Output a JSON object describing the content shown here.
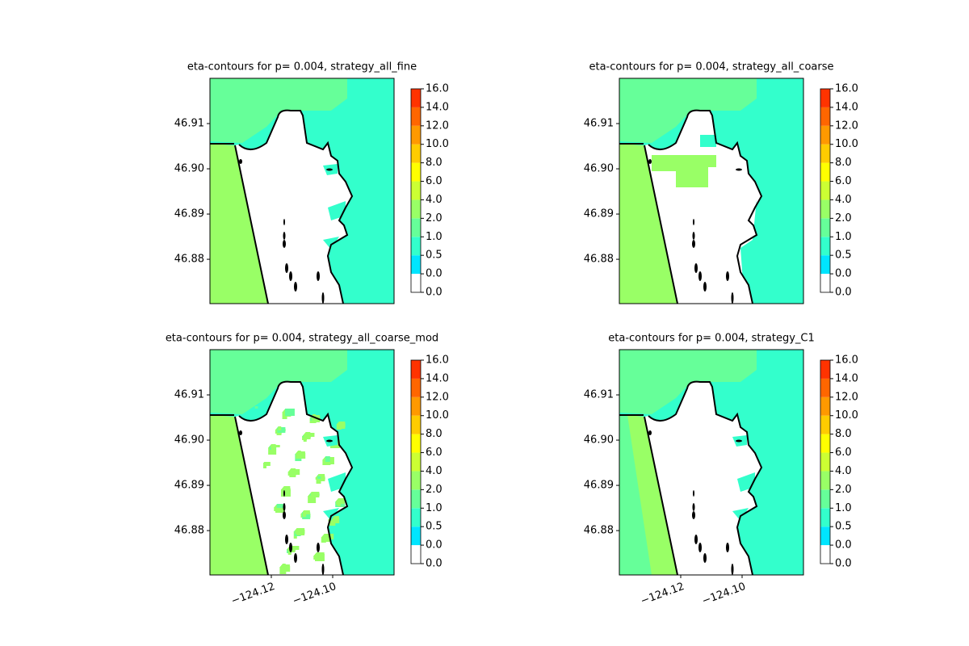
{
  "chart_data": [
    {
      "type": "contour",
      "title": "eta-contours for p= 0.004, strategy_all_fine",
      "xlim": [
        -124.14,
        -124.08
      ],
      "ylim": [
        46.8702,
        46.92
      ],
      "yticks": [
        46.88,
        46.89,
        {
          "value": 46.9,
          "label": "46.90"
        },
        46.91
      ],
      "levels": [
        {
          "value": 0,
          "label": "0.0"
        },
        {
          "value": 0,
          "label": "0.0"
        },
        0.5,
        {
          "value": 1,
          "label": "1.0"
        },
        {
          "value": 2,
          "label": "2.0"
        },
        {
          "value": 4,
          "label": "4.0"
        },
        {
          "value": 6,
          "label": "6.0"
        },
        {
          "value": 8,
          "label": "8.0"
        },
        {
          "value": 10,
          "label": "10.0"
        },
        {
          "value": 12,
          "label": "12.0"
        },
        {
          "value": 14,
          "label": "14.0"
        },
        {
          "value": 16,
          "label": "16.0"
        }
      ],
      "colors": [
        "#ffffff",
        "#00e5ff",
        "#33ffcc",
        "#66ff99",
        "#99ff66",
        "#ccff33",
        "#ffff00",
        "#ffcc00",
        "#ff9900",
        "#ff6600",
        "#ff3300"
      ]
    },
    {
      "type": "contour",
      "title": "eta-contours for p= 0.004, strategy_all_coarse",
      "xlim": [
        -124.14,
        -124.08
      ],
      "ylim": [
        46.8702,
        46.92
      ],
      "yticks": [
        46.88,
        46.89,
        {
          "value": 46.9,
          "label": "46.90"
        },
        46.91
      ],
      "levels": [
        {
          "value": 0,
          "label": "0.0"
        },
        {
          "value": 0,
          "label": "0.0"
        },
        0.5,
        {
          "value": 1,
          "label": "1.0"
        },
        {
          "value": 2,
          "label": "2.0"
        },
        {
          "value": 4,
          "label": "4.0"
        },
        {
          "value": 6,
          "label": "6.0"
        },
        {
          "value": 8,
          "label": "8.0"
        },
        {
          "value": 10,
          "label": "10.0"
        },
        {
          "value": 12,
          "label": "12.0"
        },
        {
          "value": 14,
          "label": "14.0"
        },
        {
          "value": 16,
          "label": "16.0"
        }
      ],
      "colors": [
        "#ffffff",
        "#00e5ff",
        "#33ffcc",
        "#66ff99",
        "#99ff66",
        "#ccff33",
        "#ffff00",
        "#ffcc00",
        "#ff9900",
        "#ff6600",
        "#ff3300"
      ]
    },
    {
      "type": "contour",
      "title": "eta-contours for p= 0.004, strategy_all_coarse_mod",
      "xlim": [
        -124.14,
        -124.08
      ],
      "ylim": [
        46.8702,
        46.92
      ],
      "xticks": [
        {
          "value": -124.12,
          "label": "−124.12"
        },
        {
          "value": -124.1,
          "label": "−124.10"
        }
      ],
      "yticks": [
        46.88,
        46.89,
        {
          "value": 46.9,
          "label": "46.90"
        },
        46.91
      ],
      "levels": [
        {
          "value": 0,
          "label": "0.0"
        },
        {
          "value": 0,
          "label": "0.0"
        },
        0.5,
        {
          "value": 1,
          "label": "1.0"
        },
        {
          "value": 2,
          "label": "2.0"
        },
        {
          "value": 4,
          "label": "4.0"
        },
        {
          "value": 6,
          "label": "6.0"
        },
        {
          "value": 8,
          "label": "8.0"
        },
        {
          "value": 10,
          "label": "10.0"
        },
        {
          "value": 12,
          "label": "12.0"
        },
        {
          "value": 14,
          "label": "14.0"
        },
        {
          "value": 16,
          "label": "16.0"
        }
      ],
      "colors": [
        "#ffffff",
        "#00e5ff",
        "#33ffcc",
        "#66ff99",
        "#99ff66",
        "#ccff33",
        "#ffff00",
        "#ffcc00",
        "#ff9900",
        "#ff6600",
        "#ff3300"
      ]
    },
    {
      "type": "contour",
      "title": "eta-contours for p= 0.004, strategy_C1",
      "xlim": [
        -124.14,
        -124.08
      ],
      "ylim": [
        46.8702,
        46.92
      ],
      "xticks": [
        {
          "value": -124.12,
          "label": "−124.12"
        },
        {
          "value": -124.1,
          "label": "−124.10"
        }
      ],
      "yticks": [
        46.88,
        46.89,
        {
          "value": 46.9,
          "label": "46.90"
        },
        46.91
      ],
      "levels": [
        {
          "value": 0,
          "label": "0.0"
        },
        {
          "value": 0,
          "label": "0.0"
        },
        0.5,
        {
          "value": 1,
          "label": "1.0"
        },
        {
          "value": 2,
          "label": "2.0"
        },
        {
          "value": 4,
          "label": "4.0"
        },
        {
          "value": 6,
          "label": "6.0"
        },
        {
          "value": 8,
          "label": "8.0"
        },
        {
          "value": 10,
          "label": "10.0"
        },
        {
          "value": 12,
          "label": "12.0"
        },
        {
          "value": 14,
          "label": "14.0"
        },
        {
          "value": 16,
          "label": "16.0"
        }
      ],
      "colors": [
        "#ffffff",
        "#00e5ff",
        "#33ffcc",
        "#66ff99",
        "#99ff66",
        "#ccff33",
        "#ffff00",
        "#ffcc00",
        "#ff9900",
        "#ff6600",
        "#ff3300"
      ]
    }
  ]
}
